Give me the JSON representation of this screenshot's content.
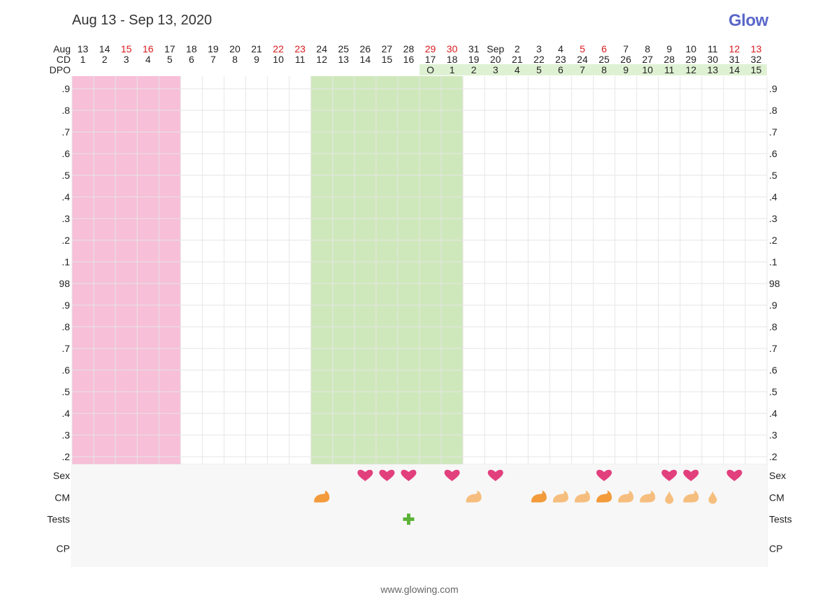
{
  "title": "Aug 13 - Sep 13, 2020",
  "brand": "Glow",
  "footer": "www.glowing.com",
  "colors": {
    "period_band": "#f7bfd8",
    "fertile_band": "#cfe8bb",
    "dpo_band": "#dff1d3",
    "weekend_text": "#d7191c",
    "normal_text": "#222222",
    "grid": "#e6e6e6",
    "row_bg": "#f7f7f7",
    "heart": "#e23f7d",
    "cm_dark": "#f39a3b",
    "cm_light": "#f6be7e",
    "test_positive": "#5cb338"
  },
  "chart_data": {
    "type": "table",
    "row_labels": {
      "date": "Aug",
      "cd": "CD",
      "dpo": "DPO"
    },
    "dates": [
      "13",
      "14",
      "15",
      "16",
      "17",
      "18",
      "19",
      "20",
      "21",
      "22",
      "23",
      "24",
      "25",
      "26",
      "27",
      "28",
      "29",
      "30",
      "31",
      "Sep",
      "2",
      "3",
      "4",
      "5",
      "6",
      "7",
      "8",
      "9",
      "10",
      "11",
      "12",
      "13"
    ],
    "weekend_dates_index": [
      2,
      3,
      9,
      10,
      16,
      17,
      23,
      24,
      30,
      31
    ],
    "cycle_days": [
      1,
      2,
      3,
      4,
      5,
      6,
      7,
      8,
      9,
      10,
      11,
      12,
      13,
      14,
      15,
      16,
      17,
      18,
      19,
      20,
      21,
      22,
      23,
      24,
      25,
      26,
      27,
      28,
      29,
      30,
      31,
      32
    ],
    "dpo": [
      "",
      "",
      "",
      "",
      "",
      "",
      "",
      "",
      "",
      "",
      "",
      "",
      "",
      "",
      "",
      "",
      "O",
      "1",
      "2",
      "3",
      "4",
      "5",
      "6",
      "7",
      "8",
      "9",
      "10",
      "11",
      "12",
      "13",
      "14",
      "15"
    ],
    "temperature_axis_labels": [
      ".9",
      ".8",
      ".7",
      ".6",
      ".5",
      ".4",
      ".3",
      ".2",
      ".1",
      "98",
      ".9",
      ".8",
      ".7",
      ".6",
      ".5",
      ".4",
      ".3",
      ".2"
    ],
    "period_days": [
      1,
      5
    ],
    "fertile_days": [
      12,
      18
    ],
    "event_rows": [
      "Sex",
      "CM",
      "Tests",
      "CP"
    ],
    "sex_days": [
      14,
      15,
      16,
      18,
      20,
      25,
      28,
      29,
      31
    ],
    "cm": [
      {
        "day": 12,
        "type": "creamy"
      },
      {
        "day": 19,
        "type": "creamy-light"
      },
      {
        "day": 22,
        "type": "creamy"
      },
      {
        "day": 23,
        "type": "creamy-light"
      },
      {
        "day": 24,
        "type": "creamy-light"
      },
      {
        "day": 25,
        "type": "creamy"
      },
      {
        "day": 26,
        "type": "creamy-light"
      },
      {
        "day": 27,
        "type": "creamy-light"
      },
      {
        "day": 28,
        "type": "watery"
      },
      {
        "day": 29,
        "type": "creamy-light"
      },
      {
        "day": 30,
        "type": "watery"
      }
    ],
    "tests": [
      {
        "day": 16,
        "type": "positive"
      }
    ]
  }
}
